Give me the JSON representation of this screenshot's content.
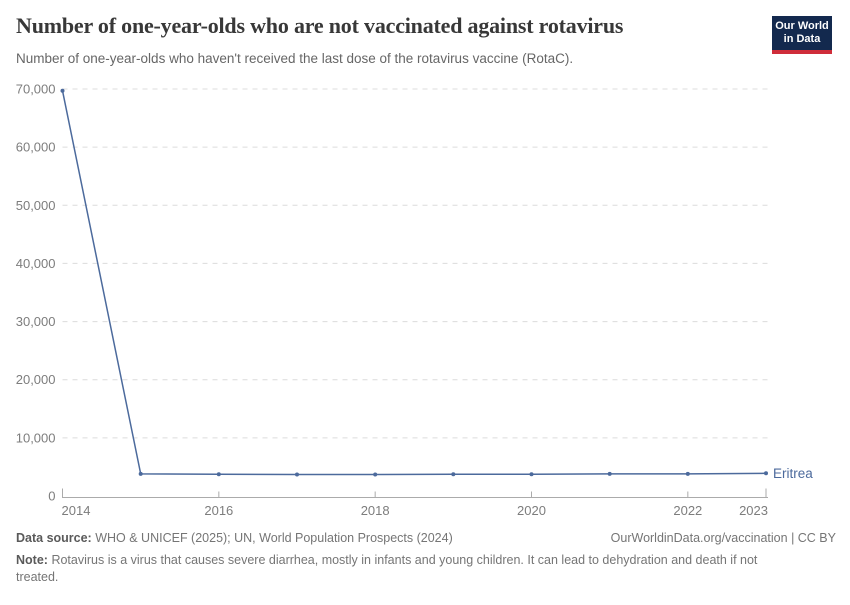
{
  "logo": {
    "line1": "Our World",
    "line2": "in Data",
    "bg_color": "#13294e",
    "accent_color": "#cf2d3a"
  },
  "chart_data": {
    "type": "line",
    "title": "Number of one-year-olds who are not vaccinated against rotavirus",
    "subtitle": "Number of one-year-olds who haven't received the last dose of the rotavirus vaccine (RotaC).",
    "x": [
      2014,
      2015,
      2016,
      2017,
      2018,
      2019,
      2020,
      2021,
      2022,
      2023
    ],
    "series": [
      {
        "name": "Eritrea",
        "color": "#4c6a9c",
        "values": [
          69700,
          3800,
          3750,
          3700,
          3700,
          3750,
          3750,
          3800,
          3800,
          3900
        ]
      }
    ],
    "ylim": [
      0,
      70000
    ],
    "y_ticks": [
      0,
      10000,
      20000,
      30000,
      40000,
      50000,
      60000,
      70000
    ],
    "x_tick_labels": [
      "2014",
      "2016",
      "2018",
      "2020",
      "2022",
      "2023"
    ],
    "xlabel": "",
    "ylabel": "",
    "grid": "horizontal-dashed",
    "legend_position": "end-of-line-label",
    "grid_color": "#dcdcdc",
    "axis_color": "#ababab",
    "axis_text_color": "#7d7d7d"
  },
  "footer": {
    "datasource_label": "Data source:",
    "datasource_value": "WHO & UNICEF (2025); UN, World Population Prospects (2024)",
    "rights": "OurWorldinData.org/vaccination | CC BY",
    "note_label": "Note:",
    "note_value": "Rotavirus is a virus that causes severe diarrhea, mostly in infants and young children. It can lead to dehydration and death if not treated."
  }
}
